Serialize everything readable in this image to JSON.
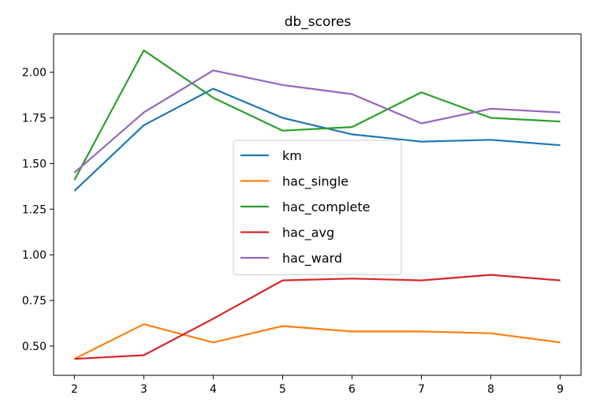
{
  "chart_data": {
    "type": "line",
    "title": "db_scores",
    "xlabel": "",
    "ylabel": "",
    "x": [
      2,
      3,
      4,
      5,
      6,
      7,
      8,
      9
    ],
    "xlim": [
      1.7,
      9.3
    ],
    "ylim": [
      0.34,
      2.21
    ],
    "xticks": [
      "2",
      "3",
      "4",
      "5",
      "6",
      "7",
      "8",
      "9"
    ],
    "yticks": [
      0.5,
      0.75,
      1.0,
      1.25,
      1.5,
      1.75,
      2.0
    ],
    "ytick_labels": [
      "0.50",
      "0.75",
      "1.00",
      "1.25",
      "1.50",
      "1.75",
      "2.00"
    ],
    "grid": false,
    "legend_placement": "center",
    "series": [
      {
        "name": "km",
        "color": "#1f77b4",
        "values": [
          1.35,
          1.71,
          1.91,
          1.75,
          1.66,
          1.62,
          1.63,
          1.6
        ]
      },
      {
        "name": "hac_single",
        "color": "#ff7f0e",
        "values": [
          0.43,
          0.62,
          0.52,
          0.61,
          0.58,
          0.58,
          0.57,
          0.52
        ]
      },
      {
        "name": "hac_complete",
        "color": "#2ca02c",
        "values": [
          1.41,
          2.12,
          1.86,
          1.68,
          1.7,
          1.89,
          1.75,
          1.73
        ]
      },
      {
        "name": "hac_avg",
        "color": "#d62728",
        "values": [
          0.43,
          0.45,
          0.65,
          0.86,
          0.87,
          0.86,
          0.89,
          0.86
        ]
      },
      {
        "name": "hac_ward",
        "color": "#9467bd",
        "values": [
          1.45,
          1.78,
          2.01,
          1.93,
          1.88,
          1.72,
          1.8,
          1.78
        ]
      }
    ]
  }
}
